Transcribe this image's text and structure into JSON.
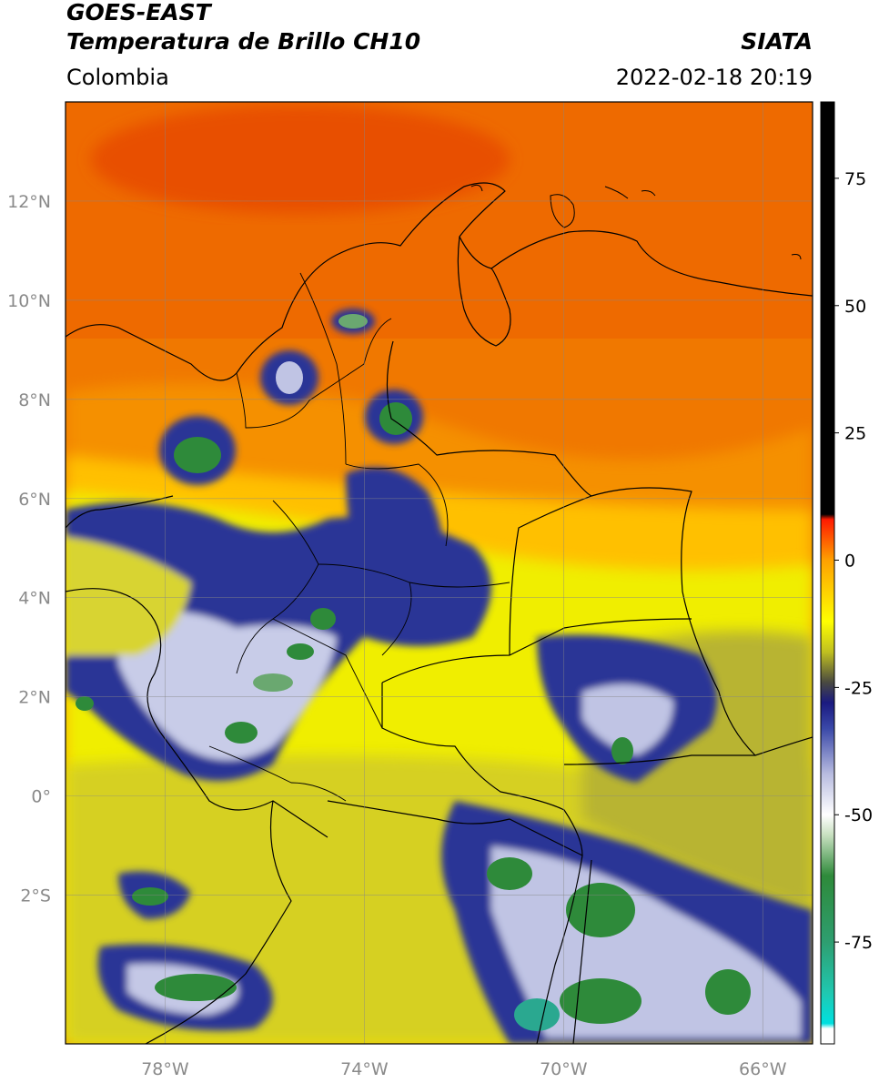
{
  "header": {
    "satellite": "GOES-EAST",
    "product": "Temperatura de Brillo CH10",
    "agency": "SIATA",
    "region": "Colombia",
    "datetime": "2022-02-18 20:19"
  },
  "map": {
    "extent": {
      "lon_min": -80,
      "lon_max": -65,
      "lat_min": -5,
      "lat_max": 14
    },
    "lon_ticks": [
      {
        "value": -78,
        "label": "78°W"
      },
      {
        "value": -74,
        "label": "74°W"
      },
      {
        "value": -70,
        "label": "70°W"
      },
      {
        "value": -66,
        "label": "66°W"
      }
    ],
    "lat_ticks": [
      {
        "value": 12,
        "label": "12°N"
      },
      {
        "value": 10,
        "label": "10°N"
      },
      {
        "value": 8,
        "label": "8°N"
      },
      {
        "value": 6,
        "label": "6°N"
      },
      {
        "value": 4,
        "label": "4°N"
      },
      {
        "value": 2,
        "label": "2°N"
      },
      {
        "value": 0,
        "label": "0°"
      },
      {
        "value": -2,
        "label": "2°S"
      }
    ],
    "gridlines": true
  },
  "colorbar": {
    "range": [
      -95,
      90
    ],
    "ticks": [
      {
        "value": 75,
        "label": "75"
      },
      {
        "value": 50,
        "label": "50"
      },
      {
        "value": 25,
        "label": "25"
      },
      {
        "value": 0,
        "label": "0"
      },
      {
        "value": -25,
        "label": "-25"
      },
      {
        "value": -50,
        "label": "-50"
      },
      {
        "value": -75,
        "label": "-75"
      }
    ],
    "stops": [
      {
        "value": -95,
        "color": "#ffffff"
      },
      {
        "value": -92,
        "color": "#ffffff"
      },
      {
        "value": -91,
        "color": "#00e0e0"
      },
      {
        "value": -85,
        "color": "#20c8b0"
      },
      {
        "value": -75,
        "color": "#2e9e70"
      },
      {
        "value": -62,
        "color": "#2e8a3a"
      },
      {
        "value": -54,
        "color": "#c8e0c0"
      },
      {
        "value": -50,
        "color": "#ffffff"
      },
      {
        "value": -42,
        "color": "#b8bce0"
      },
      {
        "value": -33,
        "color": "#3a48a8"
      },
      {
        "value": -28,
        "color": "#1a1a80"
      },
      {
        "value": -24,
        "color": "#4a4a40"
      },
      {
        "value": -18,
        "color": "#c0c020"
      },
      {
        "value": -12,
        "color": "#ffff00"
      },
      {
        "value": 0,
        "color": "#ffa000"
      },
      {
        "value": 8,
        "color": "#ff1a00"
      },
      {
        "value": 9,
        "color": "#000000"
      },
      {
        "value": 90,
        "color": "#000000"
      }
    ]
  }
}
